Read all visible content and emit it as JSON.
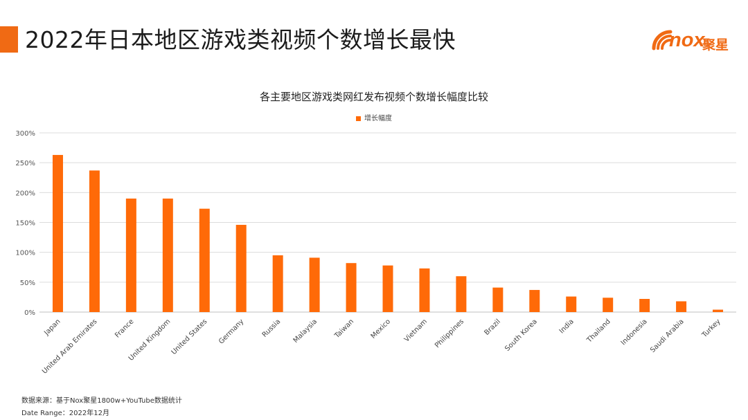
{
  "page": {
    "title": "2022年日本地区游戏类视频个数增长最快",
    "accent_color": "#f06a14"
  },
  "logo": {
    "text": "nox",
    "text_cn": "聚星",
    "icon": "nox-wifi-logo-icon"
  },
  "chart_data": {
    "type": "bar",
    "title": "各主要地区游戏类网红发布视频个数增长幅度比较",
    "legend_position": "top",
    "grid": true,
    "ylim": [
      0,
      300
    ],
    "yticks": [
      "0%",
      "50%",
      "100%",
      "150%",
      "200%",
      "250%",
      "300%"
    ],
    "categories": [
      "Japan",
      "United Arab Emirates",
      "France",
      "United Kingdom",
      "United States",
      "Germany",
      "Russia",
      "Malaysia",
      "Taiwan",
      "Mexico",
      "Vietnam",
      "Philippines",
      "Brazil",
      "South Korea",
      "India",
      "Thailand",
      "Indonesia",
      "Saudi Arabia",
      "Turkey"
    ],
    "series": [
      {
        "name": "增长幅度",
        "color": "#ff6a08",
        "values": [
          263,
          237,
          190,
          190,
          173,
          146,
          95,
          91,
          82,
          78,
          73,
          60,
          41,
          37,
          26,
          24,
          22,
          18,
          4
        ]
      }
    ]
  },
  "footer": {
    "source": "数据来源：基于Nox聚星1800w+YouTube数据统计",
    "date_range": "Date Range：2022年12月"
  }
}
